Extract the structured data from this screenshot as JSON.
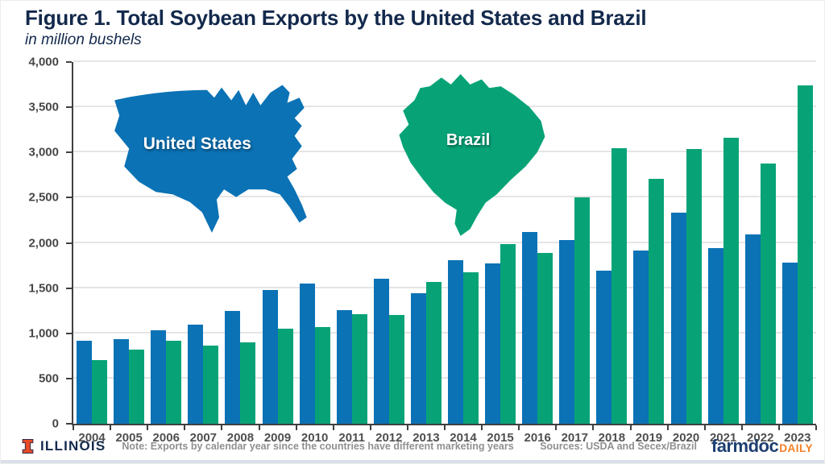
{
  "header": {
    "title": "Figure 1. Total Soybean Exports by the United States and Brazil",
    "subtitle": "in million bushels"
  },
  "chart_data": {
    "type": "bar",
    "title": "Figure 1. Total Soybean Exports by the United States and Brazil",
    "subtitle": "in million bushels",
    "unit": "million bushels",
    "categories": [
      2004,
      2005,
      2006,
      2007,
      2008,
      2009,
      2010,
      2011,
      2012,
      2013,
      2014,
      2015,
      2016,
      2017,
      2018,
      2019,
      2020,
      2021,
      2022,
      2023
    ],
    "series": [
      {
        "name": "United States",
        "color": "#0B72B5",
        "values": [
          920,
          935,
          1035,
          1095,
          1245,
          1480,
          1550,
          1260,
          1600,
          1440,
          1810,
          1770,
          2120,
          2030,
          1695,
          1915,
          2335,
          1940,
          2090,
          1780
        ]
      },
      {
        "name": "Brazil",
        "color": "#07A377",
        "values": [
          700,
          820,
          915,
          865,
          900,
          1050,
          1070,
          1215,
          1205,
          1570,
          1675,
          1990,
          1890,
          2500,
          3050,
          2710,
          3040,
          3160,
          2880,
          3740
        ]
      }
    ],
    "ylim": [
      0,
      4000
    ],
    "yticks": {
      "values": [
        0,
        500,
        1000,
        1500,
        2000,
        2500,
        3000,
        3500,
        4000
      ],
      "labels": [
        "0",
        "500",
        "1,000",
        "1,500",
        "2,000",
        "2,500",
        "3,000",
        "3,500",
        "4,000"
      ]
    },
    "grid": true,
    "legend": "country map silhouettes inside plot area"
  },
  "maps": {
    "united_states_label": "United States",
    "brazil_label": "Brazil"
  },
  "footer": {
    "org_name": "ILLINOIS",
    "note": "Note: Exports by calendar year since the countries have different marketing years",
    "sources": "Sources: USDA and Secex/Brazil",
    "brand_farmdoc": "farmdoc",
    "brand_daily": "DAILY"
  },
  "colors": {
    "us_blue": "#0B72B5",
    "brazil_green": "#07A377",
    "navy": "#13294C",
    "grid_gray": "#E5E5E5",
    "axis_gray": "#404040",
    "tick_label_gray": "#474747",
    "note_gray": "#909090",
    "farmdoc_navy": "#1D3E70",
    "daily_orange": "#F58025",
    "illinois_orange": "#E84A27",
    "bottom_strip": "#D9DFE9"
  }
}
